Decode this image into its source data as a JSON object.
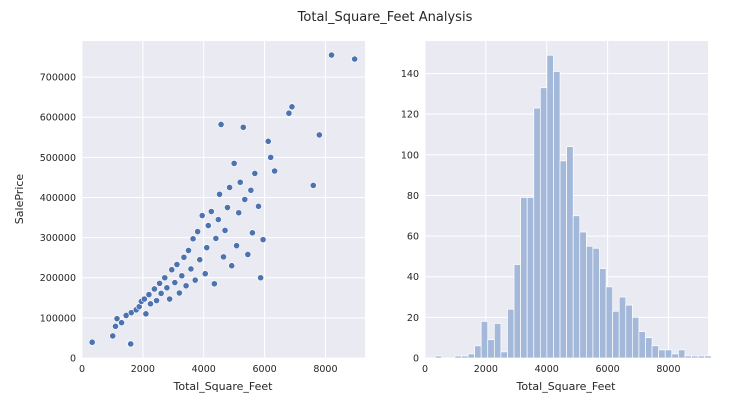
{
  "figure": {
    "title": "Total_Square_Feet Analysis"
  },
  "chart_data": [
    {
      "type": "scatter",
      "xlabel": "Total_Square_Feet",
      "ylabel": "SalePrice",
      "xlim": [
        0,
        9300
      ],
      "ylim": [
        0,
        790000
      ],
      "xticks": [
        0,
        2000,
        4000,
        6000,
        8000
      ],
      "yticks": [
        0,
        100000,
        200000,
        300000,
        400000,
        500000,
        600000,
        700000
      ],
      "grid": true,
      "color": "#4c72b0",
      "points": [
        [
          334,
          39300
        ],
        [
          1010,
          55000
        ],
        [
          1100,
          79000
        ],
        [
          1150,
          98000
        ],
        [
          1300,
          88000
        ],
        [
          1450,
          106000
        ],
        [
          1600,
          35000
        ],
        [
          1620,
          113000
        ],
        [
          1780,
          120000
        ],
        [
          1880,
          128000
        ],
        [
          1950,
          141000
        ],
        [
          2050,
          147000
        ],
        [
          2100,
          110000
        ],
        [
          2200,
          158000
        ],
        [
          2250,
          135000
        ],
        [
          2380,
          172000
        ],
        [
          2450,
          143000
        ],
        [
          2550,
          186000
        ],
        [
          2600,
          161000
        ],
        [
          2720,
          200000
        ],
        [
          2790,
          175000
        ],
        [
          2880,
          147000
        ],
        [
          2950,
          220000
        ],
        [
          3050,
          188000
        ],
        [
          3120,
          233000
        ],
        [
          3200,
          162000
        ],
        [
          3280,
          205000
        ],
        [
          3350,
          251000
        ],
        [
          3420,
          180000
        ],
        [
          3500,
          268000
        ],
        [
          3580,
          222000
        ],
        [
          3650,
          297000
        ],
        [
          3720,
          194000
        ],
        [
          3800,
          315000
        ],
        [
          3870,
          245000
        ],
        [
          3950,
          355000
        ],
        [
          4050,
          210000
        ],
        [
          4100,
          275000
        ],
        [
          4150,
          330000
        ],
        [
          4250,
          365000
        ],
        [
          4350,
          185000
        ],
        [
          4400,
          298000
        ],
        [
          4480,
          345000
        ],
        [
          4520,
          408000
        ],
        [
          4570,
          582000
        ],
        [
          4650,
          252000
        ],
        [
          4700,
          318000
        ],
        [
          4780,
          375000
        ],
        [
          4850,
          425000
        ],
        [
          4920,
          230000
        ],
        [
          5000,
          485000
        ],
        [
          5080,
          280000
        ],
        [
          5150,
          362000
        ],
        [
          5200,
          438000
        ],
        [
          5300,
          575000
        ],
        [
          5350,
          395000
        ],
        [
          5450,
          258000
        ],
        [
          5550,
          418000
        ],
        [
          5600,
          312000
        ],
        [
          5680,
          460000
        ],
        [
          5800,
          378000
        ],
        [
          5870,
          200000
        ],
        [
          5950,
          295000
        ],
        [
          6120,
          540000
        ],
        [
          6200,
          500000
        ],
        [
          6330,
          466000
        ],
        [
          6800,
          610000
        ],
        [
          6900,
          626000
        ],
        [
          7600,
          430000
        ],
        [
          7800,
          556000
        ],
        [
          8200,
          755000
        ],
        [
          8960,
          745000
        ]
      ]
    },
    {
      "type": "bar",
      "subtype": "histogram",
      "xlabel": "Total_Square_Feet",
      "ylabel": "",
      "xlim": [
        0,
        9300
      ],
      "ylim": [
        0,
        156
      ],
      "xticks": [
        0,
        2000,
        4000,
        6000,
        8000
      ],
      "yticks": [
        0,
        20,
        40,
        60,
        80,
        100,
        120,
        140
      ],
      "grid": true,
      "color": "#a4b8d9",
      "bin_start": 334,
      "bin_width": 216,
      "counts": [
        1,
        0,
        0,
        1,
        1,
        2,
        6,
        18,
        9,
        17,
        3,
        24,
        46,
        79,
        79,
        123,
        133,
        149,
        141,
        97,
        104,
        70,
        62,
        55,
        54,
        44,
        35,
        23,
        30,
        26,
        20,
        13,
        10,
        6,
        4,
        4,
        2,
        4,
        1,
        1,
        1,
        1,
        0,
        0,
        0,
        0,
        0,
        0,
        0,
        0,
        1
      ]
    }
  ]
}
